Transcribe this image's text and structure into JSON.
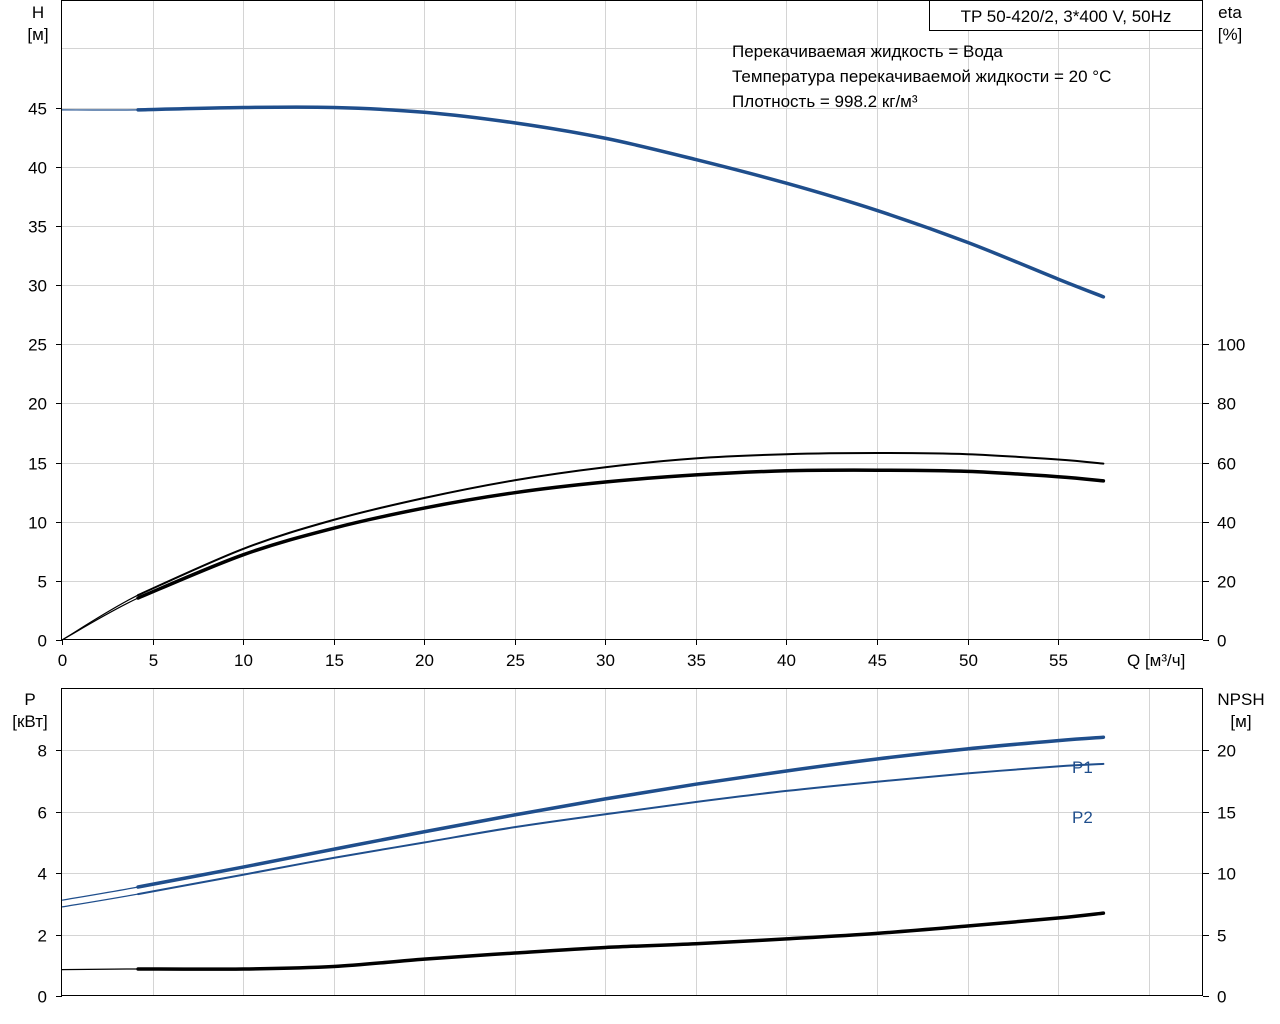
{
  "colors": {
    "blue": "#1f4e8c",
    "black": "#000000",
    "grid": "#d4d4d4"
  },
  "chart_data": [
    {
      "type": "line",
      "panel": "top",
      "title": "TP 50-420/2, 3*400 V, 50Hz",
      "annotations": [
        "Перекачиваемая жидкость = Вода",
        "Температура перекачиваемой жидкости = 20 °C",
        "Плотность = 998.2 кг/м³"
      ],
      "xlabel": "Q [м³/ч]",
      "ylabel_left": [
        "H",
        "[м]"
      ],
      "ylabel_right": [
        "eta",
        "[%]"
      ],
      "xlim": [
        0,
        63
      ],
      "ylim_left": [
        0,
        54
      ],
      "ylim_right": [
        0,
        216
      ],
      "x_ticks": [
        0,
        5,
        10,
        15,
        20,
        25,
        30,
        35,
        40,
        45,
        50,
        55
      ],
      "y_ticks_left": [
        0,
        5,
        10,
        15,
        20,
        25,
        30,
        35,
        40,
        45
      ],
      "y_ticks_right": [
        0,
        20,
        40,
        60,
        80,
        100
      ],
      "grid": true,
      "series": [
        {
          "axis": "left",
          "color": "#1f4e8c",
          "width": 3.5,
          "thin_lead": true,
          "x": [
            0,
            4.2,
            10,
            15,
            20,
            25,
            30,
            35,
            40,
            45,
            50,
            55,
            57.5
          ],
          "y": [
            44.8,
            44.8,
            45.0,
            45.0,
            44.6,
            43.7,
            42.4,
            40.6,
            38.6,
            36.3,
            33.6,
            30.5,
            29.0
          ]
        },
        {
          "axis": "right",
          "color": "#000000",
          "width": 2,
          "thin_lead": true,
          "x": [
            0,
            4.2,
            10,
            15,
            20,
            25,
            30,
            35,
            40,
            45,
            50,
            55,
            57.5
          ],
          "y": [
            0,
            15.2,
            30.8,
            40.6,
            48.0,
            54.0,
            58.4,
            61.4,
            62.8,
            63.2,
            62.8,
            61.0,
            59.6
          ]
        },
        {
          "axis": "right",
          "color": "#000000",
          "width": 3.5,
          "thin_lead": true,
          "x": [
            0,
            4.2,
            10,
            15,
            20,
            25,
            30,
            35,
            40,
            45,
            50,
            55,
            57.5
          ],
          "y": [
            0,
            14.2,
            28.8,
            37.8,
            44.6,
            49.8,
            53.4,
            55.8,
            57.2,
            57.4,
            57.0,
            55.2,
            53.8
          ]
        }
      ]
    },
    {
      "type": "line",
      "panel": "bottom",
      "ylabel_left": [
        "P",
        "[кВт]"
      ],
      "ylabel_right": [
        "NPSH",
        "[м]"
      ],
      "xlim": [
        0,
        63
      ],
      "ylim_left": [
        0,
        10
      ],
      "ylim_right": [
        0,
        25
      ],
      "y_ticks_left": [
        0,
        2,
        4,
        6,
        8
      ],
      "y_ticks_right": [
        0,
        5,
        10,
        15,
        20
      ],
      "grid": true,
      "series": [
        {
          "name": "P1",
          "axis": "left",
          "color": "#1f4e8c",
          "width": 3.5,
          "thin_lead": true,
          "x": [
            0,
            4.2,
            10,
            15,
            20,
            25,
            30,
            35,
            40,
            45,
            50,
            55,
            57.5
          ],
          "y": [
            3.12,
            3.55,
            4.2,
            4.78,
            5.35,
            5.9,
            6.42,
            6.9,
            7.33,
            7.72,
            8.05,
            8.32,
            8.43
          ]
        },
        {
          "name": "P2",
          "axis": "left",
          "color": "#1f4e8c",
          "width": 2,
          "thin_lead": true,
          "x": [
            0,
            4.2,
            10,
            15,
            20,
            25,
            30,
            35,
            40,
            45,
            50,
            55,
            57.5
          ],
          "y": [
            2.9,
            3.32,
            3.95,
            4.5,
            5.0,
            5.5,
            5.92,
            6.32,
            6.68,
            6.98,
            7.25,
            7.48,
            7.56
          ]
        },
        {
          "axis": "right",
          "color": "#000000",
          "width": 3.5,
          "thin_lead": true,
          "x": [
            0,
            4.2,
            10,
            15,
            20,
            25,
            30,
            35,
            40,
            45,
            50,
            55,
            57.5
          ],
          "y": [
            2.15,
            2.2,
            2.2,
            2.4,
            3.0,
            3.5,
            3.95,
            4.25,
            4.65,
            5.1,
            5.7,
            6.35,
            6.75
          ]
        }
      ]
    }
  ]
}
